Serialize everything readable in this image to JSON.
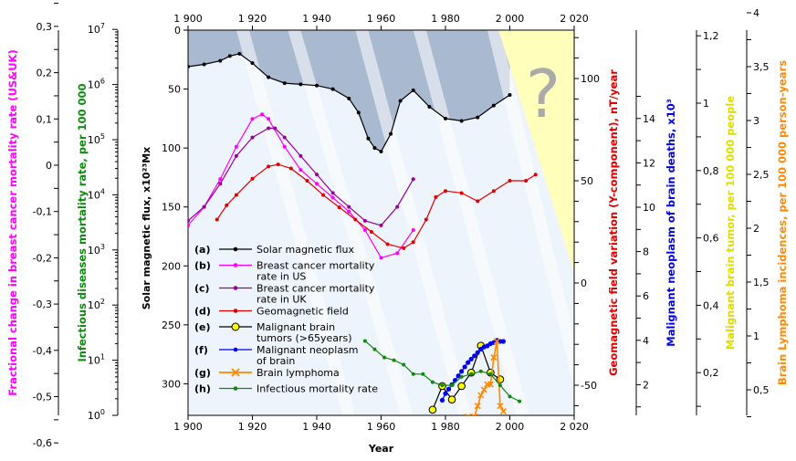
{
  "chart_data": {
    "type": "line",
    "title": "",
    "question_mark": "?",
    "xlabel": "Year",
    "x_ticks": [
      "1 900",
      "1 920",
      "1 940",
      "1 960",
      "1 980",
      "2 000",
      "2 020"
    ],
    "xlim": [
      1900,
      2020
    ],
    "colors": {
      "solar": "#000000",
      "breast_us": "#ff00ff",
      "breast_uk": "#990099",
      "geomag": "#e00000",
      "brain_tumor": "#ffff00",
      "neoplasm": "#0000ee",
      "lymphoma": "#ff8800",
      "infectious": "#118811",
      "solar_fill": "#a9b9d0",
      "lower_fill": "#eef4fb",
      "future_fill": "#ffffbb"
    },
    "axes": {
      "solar": {
        "label": "Solar magnetic flux, x10²³Mx",
        "range": [
          0,
          330
        ],
        "inverted": true,
        "ticks": [
          "0",
          "50",
          "100",
          "150",
          "200",
          "250",
          "300"
        ]
      },
      "infectious": {
        "label": "Infectious diseases mortality rate, per 100 000",
        "scale": "log",
        "ticks": [
          {
            "base": "10",
            "exp": "0"
          },
          {
            "base": "10",
            "exp": "1"
          },
          {
            "base": "10",
            "exp": "2"
          },
          {
            "base": "10",
            "exp": "3"
          },
          {
            "base": "10",
            "exp": "4"
          },
          {
            "base": "10",
            "exp": "5"
          },
          {
            "base": "10",
            "exp": "6"
          },
          {
            "base": "10",
            "exp": "7"
          }
        ]
      },
      "breast": {
        "label": "Fractional change in breast cancer mortality rate (US&UK)",
        "ticks": [
          "0,3",
          "0,2",
          "0,1",
          "0",
          "-0,1",
          "-0,2",
          "-0,3",
          "-0,4",
          "-0,5",
          "-0,6"
        ]
      },
      "geomag": {
        "label": "Geomagnetic field variation (Y-component), nT/year",
        "ticks": [
          "100",
          "50",
          "0",
          "-50"
        ]
      },
      "neoplasm": {
        "label": "Malignant neoplasm of brain deaths, x10³",
        "ticks": [
          "14",
          "12",
          "10",
          "8",
          "6",
          "4",
          "2"
        ]
      },
      "brain_tumor": {
        "label": "Malignant brain tumor, per 100 000 people",
        "ticks": [
          "1,2",
          "1",
          "0,8",
          "0,6",
          "0,4",
          "0,2"
        ]
      },
      "lymphoma": {
        "label": "Brain Lymphoma incidences, per 100 000 person-years",
        "ticks": [
          "4",
          "3,5",
          "3",
          "2,5",
          "2",
          "1,5",
          "1",
          "0,5"
        ]
      }
    },
    "legend": [
      {
        "key": "(a)",
        "lines": [
          "Solar magnetic flux"
        ],
        "series": "solar",
        "marker": "dot"
      },
      {
        "key": "(b)",
        "lines": [
          "Breast cancer mortality",
          "rate in US"
        ],
        "series": "breast_us",
        "marker": "dot"
      },
      {
        "key": "(c)",
        "lines": [
          "Breast cancer mortality",
          "rate in UK"
        ],
        "series": "breast_uk",
        "marker": "dot"
      },
      {
        "key": "(d)",
        "lines": [
          "Geomagnetic field"
        ],
        "series": "geomag",
        "marker": "dot"
      },
      {
        "key": "(e)",
        "lines": [
          "Malignant brain",
          "tumors (>65years)"
        ],
        "series": "brain_tumor",
        "marker": "circle"
      },
      {
        "key": "(f)",
        "lines": [
          "Malignant neoplasm",
          "of brain"
        ],
        "series": "neoplasm",
        "marker": "dot"
      },
      {
        "key": "(g)",
        "lines": [
          "Brain lymphoma"
        ],
        "series": "lymphoma",
        "marker": "cross"
      },
      {
        "key": "(h)",
        "lines": [
          "Infectious mortality rate"
        ],
        "series": "infectious",
        "marker": "dot"
      }
    ],
    "series": [
      {
        "name": "Solar magnetic flux",
        "id": "solar",
        "axis": "solar",
        "x": [
          1900,
          1905,
          1910,
          1913,
          1916,
          1920,
          1925,
          1930,
          1935,
          1940,
          1945,
          1950,
          1953,
          1956,
          1958,
          1960,
          1963,
          1966,
          1970,
          1975,
          1980,
          1985,
          1990,
          1995,
          2000
        ],
        "y": [
          31,
          29,
          26,
          22,
          20,
          28,
          40,
          45,
          46,
          47,
          50,
          58,
          70,
          92,
          100,
          103,
          88,
          60,
          51,
          65,
          75,
          77,
          74,
          64,
          55
        ]
      },
      {
        "name": "Breast cancer mortality rate in US",
        "id": "breast_us",
        "axis": "breast",
        "x": [
          1900,
          1905,
          1910,
          1915,
          1920,
          1923,
          1925,
          1930,
          1935,
          1940,
          1945,
          1950,
          1955,
          1960,
          1965,
          1970
        ],
        "y": [
          -0.13,
          -0.09,
          -0.03,
          0.04,
          0.1,
          0.11,
          0.1,
          0.04,
          -0.01,
          -0.04,
          -0.07,
          -0.1,
          -0.14,
          -0.2,
          -0.19,
          -0.14
        ]
      },
      {
        "name": "Breast cancer mortality rate in UK",
        "id": "breast_uk",
        "axis": "breast",
        "x": [
          1900,
          1905,
          1910,
          1915,
          1920,
          1925,
          1927,
          1930,
          1935,
          1940,
          1945,
          1950,
          1955,
          1960,
          1965,
          1970
        ],
        "y": [
          -0.12,
          -0.09,
          -0.04,
          0.02,
          0.06,
          0.08,
          0.08,
          0.06,
          0.02,
          -0.02,
          -0.06,
          -0.09,
          -0.12,
          -0.13,
          -0.09,
          -0.03
        ]
      },
      {
        "name": "Geomagnetic field",
        "id": "geomag",
        "axis": "geomag",
        "x": [
          1909,
          1912,
          1915,
          1920,
          1925,
          1928,
          1932,
          1937,
          1942,
          1947,
          1952,
          1957,
          1962,
          1967,
          1970,
          1974,
          1977,
          1980,
          1985,
          1990,
          1995,
          2000,
          2005,
          2008
        ],
        "y": [
          31,
          38,
          43,
          51,
          57,
          58,
          56,
          50,
          43,
          37,
          31,
          25,
          19,
          17,
          20,
          31,
          42,
          45,
          44,
          40,
          45,
          50,
          50,
          53
        ]
      },
      {
        "name": "Malignant brain tumors (>65years)",
        "id": "brain_tumor",
        "axis": "brain_tumor",
        "x": [
          1976,
          1979,
          1982,
          1985,
          1988,
          1991,
          1994,
          1997
        ],
        "y": [
          0.09,
          0.16,
          0.12,
          0.16,
          0.2,
          0.28,
          0.2,
          0.18
        ]
      },
      {
        "name": "Malignant neoplasm of brain",
        "id": "neoplasm",
        "axis": "neoplasm",
        "x": [
          1979,
          1980,
          1981,
          1982,
          1983,
          1984,
          1985,
          1986,
          1987,
          1988,
          1989,
          1990,
          1991,
          1992,
          1993,
          1994,
          1995,
          1996,
          1997,
          1998
        ],
        "y": [
          1.3,
          1.6,
          1.8,
          2.0,
          2.2,
          2.4,
          2.6,
          2.8,
          3.0,
          3.15,
          3.3,
          3.45,
          3.6,
          3.7,
          3.75,
          3.85,
          3.9,
          4.0,
          3.95,
          3.95
        ]
      },
      {
        "name": "Brain lymphoma",
        "id": "lymphoma",
        "axis": "lymphoma",
        "x": [
          1982,
          1983,
          1984,
          1985,
          1986,
          1987,
          1988,
          1989,
          1990,
          1991,
          1992,
          1993,
          1994,
          1995,
          1996,
          1997,
          1998
        ],
        "y": [
          0.05,
          0.1,
          0.15,
          0.2,
          0.2,
          0.25,
          0.18,
          0.25,
          0.35,
          0.45,
          0.5,
          0.55,
          0.55,
          0.8,
          0.95,
          0.35,
          0.3
        ]
      },
      {
        "name": "Infectious mortality rate",
        "id": "infectious",
        "axis": "infectious",
        "x": [
          1955,
          1958,
          1961,
          1964,
          1967,
          1970,
          1973,
          1976,
          1979,
          1982,
          1985,
          1988,
          1991,
          1994,
          1997,
          2000,
          2003
        ],
        "y": [
          22.4,
          15.8,
          11.2,
          10,
          8.3,
          5.6,
          5.6,
          4.0,
          3.5,
          3.5,
          5.0,
          5.6,
          6.3,
          5.6,
          3.5,
          2.2,
          1.8
        ]
      }
    ]
  }
}
